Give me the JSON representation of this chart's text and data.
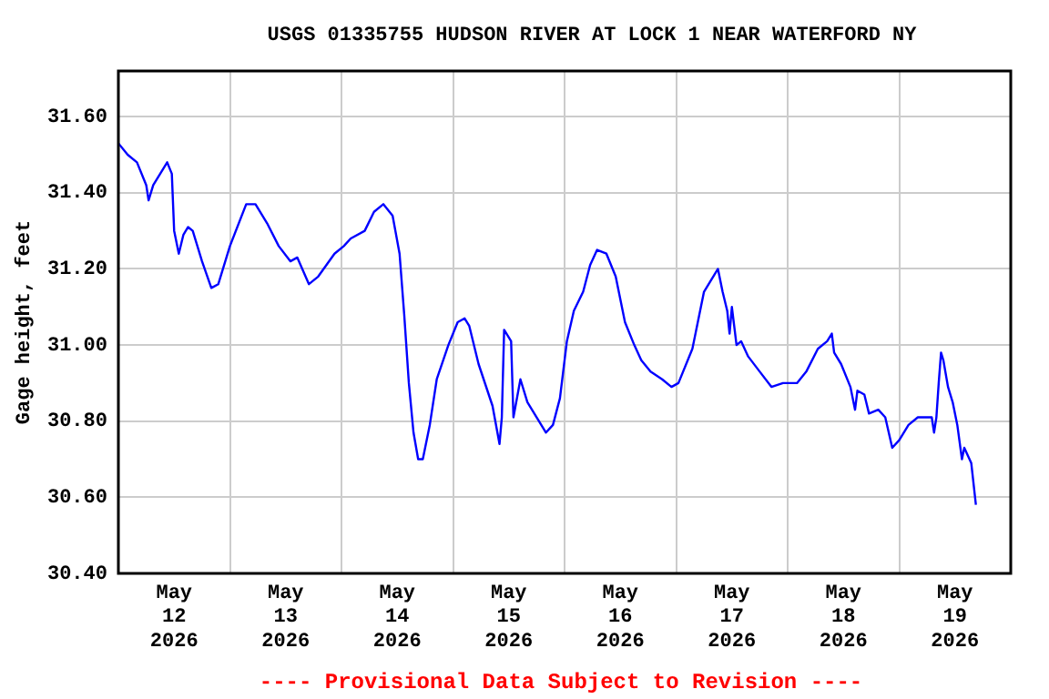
{
  "chart_data": {
    "type": "line",
    "title": "USGS 01335755 HUDSON RIVER AT LOCK 1 NEAR WATERFORD NY",
    "ylabel": "Gage height, feet",
    "annotations": [
      "---- Provisional Data Subject to Revision ----"
    ],
    "xlim": [
      "2026-05-12T00:00",
      "2026-05-20T00:00"
    ],
    "xticks": [
      {
        "value": "2026-05-12T12:00",
        "label": "May 12 2026"
      },
      {
        "value": "2026-05-13T00:00",
        "label": null
      },
      {
        "value": "2026-05-13T12:00",
        "label": "May 13 2026"
      },
      {
        "value": "2026-05-14T00:00",
        "label": null
      },
      {
        "value": "2026-05-14T12:00",
        "label": "May 14 2026"
      },
      {
        "value": "2026-05-15T00:00",
        "label": null
      },
      {
        "value": "2026-05-15T12:00",
        "label": "May 15 2026"
      },
      {
        "value": "2026-05-16T00:00",
        "label": null
      },
      {
        "value": "2026-05-16T12:00",
        "label": "May 16 2026"
      },
      {
        "value": "2026-05-17T00:00",
        "label": null
      },
      {
        "value": "2026-05-17T12:00",
        "label": "May 17 2026"
      },
      {
        "value": "2026-05-18T00:00",
        "label": null
      },
      {
        "value": "2026-05-18T12:00",
        "label": "May 18 2026"
      },
      {
        "value": "2026-05-19T00:00",
        "label": null
      },
      {
        "value": "2026-05-19T12:00",
        "label": "May 19 2026"
      }
    ],
    "ylim": [
      30.4,
      31.72
    ],
    "yticks": [
      {
        "value": 30.4,
        "label": "30.40"
      },
      {
        "value": 30.6,
        "label": "30.60"
      },
      {
        "value": 30.8,
        "label": "30.80"
      },
      {
        "value": 31.0,
        "label": "31.00"
      },
      {
        "value": 31.2,
        "label": "31.20"
      },
      {
        "value": 31.4,
        "label": "31.40"
      },
      {
        "value": 31.6,
        "label": "31.60"
      }
    ],
    "grid": true,
    "legend": false,
    "marker": "none",
    "line_style": "solid",
    "series": [
      {
        "color": "#0000ff",
        "x": [
          "2026-05-12T00:00",
          "2026-05-12T02:00",
          "2026-05-12T04:00",
          "2026-05-12T06:00",
          "2026-05-12T06:30",
          "2026-05-12T07:30",
          "2026-05-12T10:30",
          "2026-05-12T11:30",
          "2026-05-12T12:00",
          "2026-05-12T13:00",
          "2026-05-12T14:00",
          "2026-05-12T15:00",
          "2026-05-12T16:00",
          "2026-05-12T18:00",
          "2026-05-12T20:00",
          "2026-05-12T21:30",
          "2026-05-13T00:00",
          "2026-05-13T03:30",
          "2026-05-13T05:30",
          "2026-05-13T08:00",
          "2026-05-13T10:30",
          "2026-05-13T13:00",
          "2026-05-13T14:30",
          "2026-05-13T17:00",
          "2026-05-13T19:00",
          "2026-05-13T22:30",
          "2026-05-14T00:30",
          "2026-05-14T02:00",
          "2026-05-14T05:00",
          "2026-05-14T07:00",
          "2026-05-14T09:00",
          "2026-05-14T11:00",
          "2026-05-14T12:30",
          "2026-05-14T13:30",
          "2026-05-14T14:30",
          "2026-05-14T15:30",
          "2026-05-14T16:30",
          "2026-05-14T17:30",
          "2026-05-14T19:00",
          "2026-05-14T20:30",
          "2026-05-14T23:00",
          "2026-05-15T01:00",
          "2026-05-15T02:30",
          "2026-05-15T03:30",
          "2026-05-15T05:30",
          "2026-05-15T08:30",
          "2026-05-15T10:00",
          "2026-05-15T10:30",
          "2026-05-15T11:00",
          "2026-05-15T12:30",
          "2026-05-15T13:00",
          "2026-05-15T14:30",
          "2026-05-15T16:00",
          "2026-05-15T18:00",
          "2026-05-15T20:00",
          "2026-05-15T21:30",
          "2026-05-15T23:00",
          "2026-05-16T00:30",
          "2026-05-16T02:00",
          "2026-05-16T04:00",
          "2026-05-16T05:30",
          "2026-05-16T07:00",
          "2026-05-16T09:00",
          "2026-05-16T11:00",
          "2026-05-16T13:00",
          "2026-05-16T15:00",
          "2026-05-16T16:30",
          "2026-05-16T18:30",
          "2026-05-16T21:00",
          "2026-05-16T23:00",
          "2026-05-17T00:30",
          "2026-05-17T03:30",
          "2026-05-17T06:00",
          "2026-05-17T09:00",
          "2026-05-17T10:00",
          "2026-05-17T11:00",
          "2026-05-17T11:30",
          "2026-05-17T12:00",
          "2026-05-17T13:00",
          "2026-05-17T14:00",
          "2026-05-17T15:30",
          "2026-05-17T18:00",
          "2026-05-17T20:30",
          "2026-05-17T23:00",
          "2026-05-18T02:00",
          "2026-05-18T04:00",
          "2026-05-18T06:30",
          "2026-05-18T08:30",
          "2026-05-18T09:30",
          "2026-05-18T10:00",
          "2026-05-18T11:30",
          "2026-05-18T13:30",
          "2026-05-18T14:30",
          "2026-05-18T15:00",
          "2026-05-18T16:30",
          "2026-05-18T17:30",
          "2026-05-18T19:30",
          "2026-05-18T21:00",
          "2026-05-18T22:30",
          "2026-05-19T00:00",
          "2026-05-19T02:00",
          "2026-05-19T04:00",
          "2026-05-19T07:00",
          "2026-05-19T07:30",
          "2026-05-19T08:00",
          "2026-05-19T08:30",
          "2026-05-19T09:00",
          "2026-05-19T09:30",
          "2026-05-19T10:30",
          "2026-05-19T11:30",
          "2026-05-19T12:30",
          "2026-05-19T13:30",
          "2026-05-19T14:00",
          "2026-05-19T15:30",
          "2026-05-19T16:30"
        ],
        "values": [
          31.53,
          31.5,
          31.48,
          31.42,
          31.38,
          31.42,
          31.48,
          31.45,
          31.3,
          31.24,
          31.29,
          31.31,
          31.3,
          31.22,
          31.15,
          31.16,
          31.26,
          31.37,
          31.37,
          31.32,
          31.26,
          31.22,
          31.23,
          31.16,
          31.18,
          31.24,
          31.26,
          31.28,
          31.3,
          31.35,
          31.37,
          31.34,
          31.24,
          31.08,
          30.9,
          30.77,
          30.7,
          30.7,
          30.79,
          30.91,
          31.0,
          31.06,
          31.07,
          31.05,
          30.95,
          30.84,
          30.74,
          30.81,
          31.04,
          31.01,
          30.81,
          30.91,
          30.85,
          30.81,
          30.77,
          30.79,
          30.86,
          31.01,
          31.09,
          31.14,
          31.21,
          31.25,
          31.24,
          31.18,
          31.06,
          31.0,
          30.96,
          30.93,
          30.91,
          30.89,
          30.9,
          30.99,
          31.14,
          31.2,
          31.14,
          31.09,
          31.03,
          31.1,
          31.0,
          31.01,
          30.97,
          30.93,
          30.89,
          30.9,
          30.9,
          30.93,
          30.99,
          31.01,
          31.03,
          30.98,
          30.95,
          30.89,
          30.83,
          30.88,
          30.87,
          30.82,
          30.83,
          30.81,
          30.73,
          30.75,
          30.79,
          30.81,
          30.81,
          30.77,
          30.81,
          30.9,
          30.98,
          30.96,
          30.89,
          30.85,
          30.79,
          30.7,
          30.73,
          30.69,
          30.58
        ]
      }
    ]
  }
}
